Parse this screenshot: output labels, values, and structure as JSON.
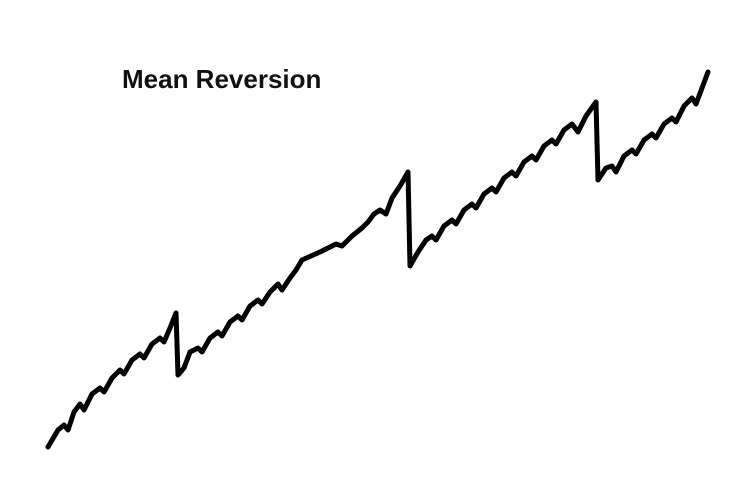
{
  "title": "Mean Reversion"
}
